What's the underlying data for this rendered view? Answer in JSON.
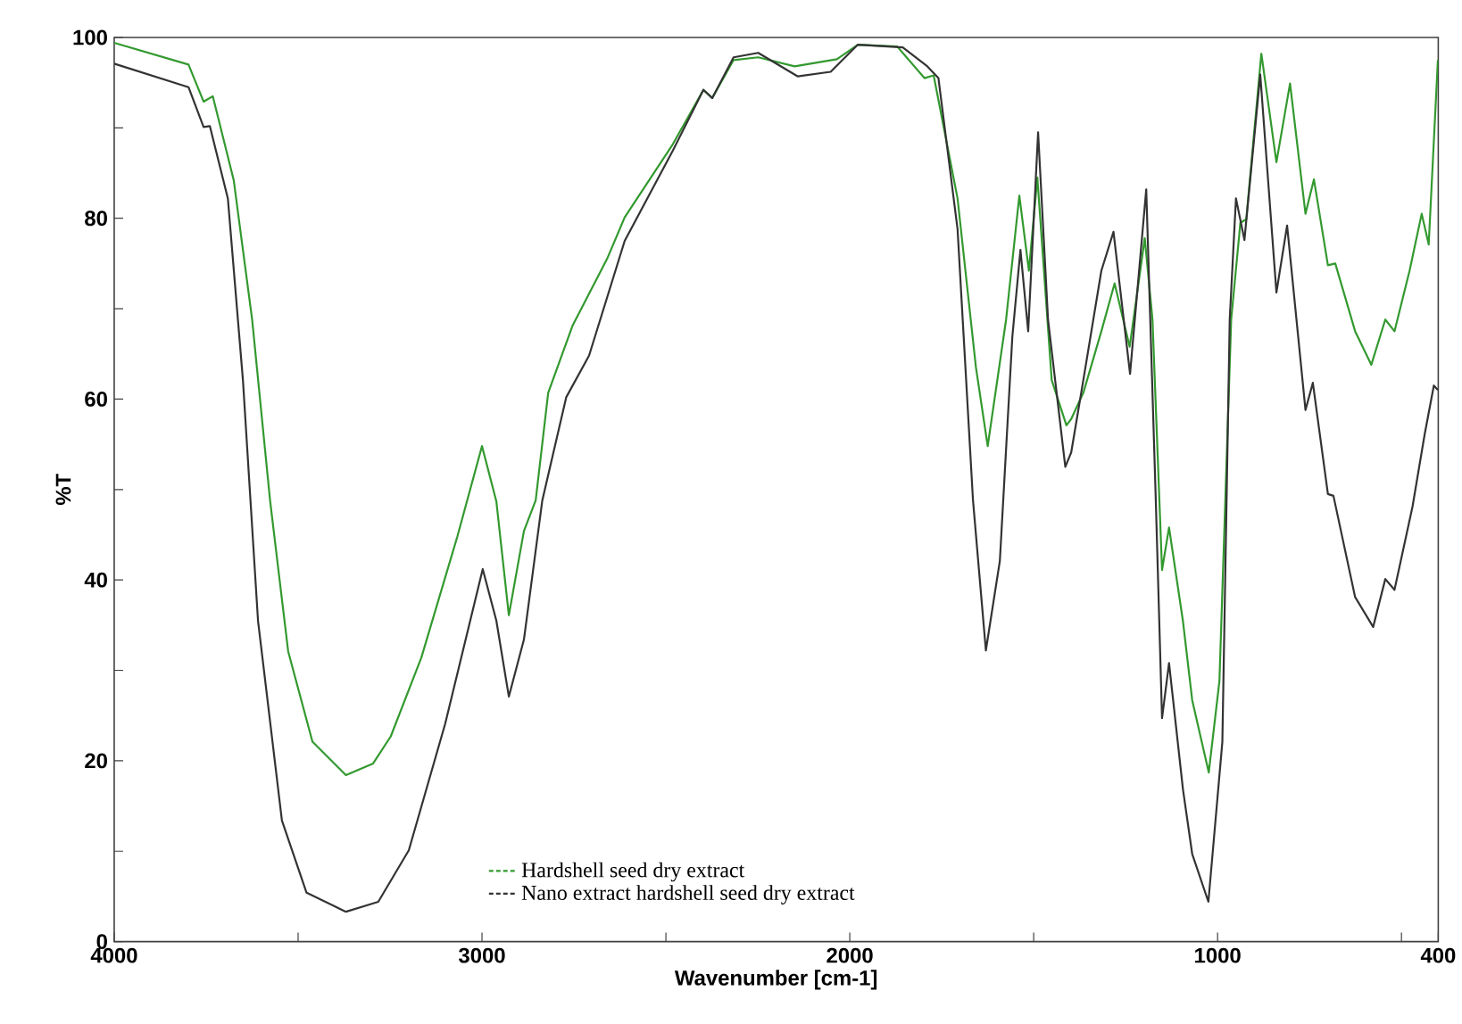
{
  "chart_data": {
    "type": "line",
    "xlabel": "Wavenumber [cm-1]",
    "ylabel": "%T",
    "xlim": [
      4000,
      400
    ],
    "ylim": [
      0,
      100
    ],
    "xticks": [
      4000,
      {
        "value": 3500,
        "label": null
      },
      3000,
      {
        "value": 2500,
        "label": null
      },
      2000,
      {
        "value": 1500,
        "label": null
      },
      1000,
      {
        "value": 500,
        "label": null
      },
      400
    ],
    "yticks": [
      0,
      {
        "value": 10,
        "label": null
      },
      20,
      {
        "value": 30,
        "label": null
      },
      40,
      {
        "value": 50,
        "label": null
      },
      60,
      {
        "value": 70,
        "label": null
      },
      80,
      {
        "value": 90,
        "label": null
      },
      100
    ],
    "legend": "bottom",
    "line_style": "solid",
    "marker": "none",
    "series": [
      {
        "name": "Hardshell seed dry extract",
        "color": "#33992f",
        "x": [
          4000,
          3798,
          3757,
          3732,
          3675,
          3625,
          3576,
          3527,
          3461,
          3370,
          3296,
          3248,
          3165,
          3067,
          3000,
          2961,
          2927,
          2886,
          2854,
          2820,
          2754,
          2660,
          2612,
          2481,
          2398,
          2374,
          2316,
          2249,
          2150,
          2035,
          1978,
          1871,
          1797,
          1772,
          1707,
          1657,
          1625,
          1575,
          1539,
          1513,
          1490,
          1451,
          1411,
          1398,
          1365,
          1316,
          1280,
          1239,
          1198,
          1177,
          1151,
          1132,
          1094,
          1069,
          1024,
          995,
          963,
          938,
          922,
          881,
          840,
          803,
          761,
          738,
          700,
          680,
          626,
          582,
          544,
          519,
          478,
          445,
          426,
          401
        ],
        "values": [
          99.4,
          97.0,
          92.9,
          93.5,
          84.2,
          68.8,
          48.7,
          32.1,
          22.1,
          18.4,
          19.7,
          22.7,
          31.4,
          44.8,
          54.8,
          48.7,
          36.1,
          45.4,
          48.8,
          60.7,
          68.1,
          75.5,
          80.1,
          88.2,
          94.2,
          93.3,
          97.5,
          97.8,
          96.8,
          97.6,
          99.2,
          99.0,
          95.5,
          95.8,
          82.2,
          63.5,
          54.8,
          68.8,
          82.5,
          74.2,
          84.5,
          62.1,
          57.1,
          57.8,
          60.7,
          67.5,
          72.8,
          65.8,
          77.8,
          68.8,
          41.1,
          45.8,
          35.4,
          26.7,
          18.7,
          28.8,
          68.8,
          79.5,
          79.9,
          98.2,
          86.2,
          94.9,
          80.5,
          84.3,
          74.8,
          75.0,
          67.5,
          63.8,
          68.8,
          67.5,
          74.2,
          80.5,
          77.1,
          97.5
        ]
      },
      {
        "name": "Nano extract hardshell seed dry extract",
        "color": "#333333",
        "x": [
          4000,
          3798,
          3757,
          3740,
          3691,
          3650,
          3609,
          3544,
          3477,
          3370,
          3282,
          3199,
          3100,
          2998,
          2961,
          2927,
          2886,
          2836,
          2771,
          2709,
          2612,
          2481,
          2398,
          2374,
          2316,
          2249,
          2142,
          2052,
          1978,
          1856,
          1789,
          1759,
          1707,
          1665,
          1630,
          1592,
          1558,
          1536,
          1515,
          1488,
          1461,
          1414,
          1398,
          1365,
          1316,
          1283,
          1238,
          1194,
          1168,
          1151,
          1132,
          1094,
          1069,
          1025,
          987,
          967,
          950,
          927,
          884,
          840,
          811,
          761,
          741,
          700,
          685,
          626,
          577,
          544,
          519,
          470,
          437,
          412,
          401
        ],
        "values": [
          97.1,
          94.5,
          90.1,
          90.2,
          82.2,
          62.1,
          35.5,
          13.4,
          5.4,
          3.3,
          4.4,
          10.1,
          24.1,
          41.2,
          35.5,
          27.1,
          33.4,
          48.8,
          60.2,
          64.8,
          77.5,
          87.5,
          94.2,
          93.3,
          97.8,
          98.3,
          95.7,
          96.2,
          99.2,
          98.9,
          96.8,
          95.5,
          78.8,
          48.8,
          32.2,
          42.1,
          66.9,
          76.5,
          67.5,
          89.5,
          68.8,
          52.5,
          54.1,
          62.1,
          74.2,
          78.5,
          62.8,
          83.2,
          48.8,
          24.7,
          30.8,
          16.8,
          9.7,
          4.4,
          22.1,
          68.8,
          82.2,
          77.6,
          95.9,
          71.8,
          79.2,
          58.8,
          61.8,
          49.5,
          49.3,
          38.1,
          34.8,
          40.1,
          38.9,
          48.1,
          56.1,
          61.5,
          61.0
        ]
      }
    ]
  }
}
